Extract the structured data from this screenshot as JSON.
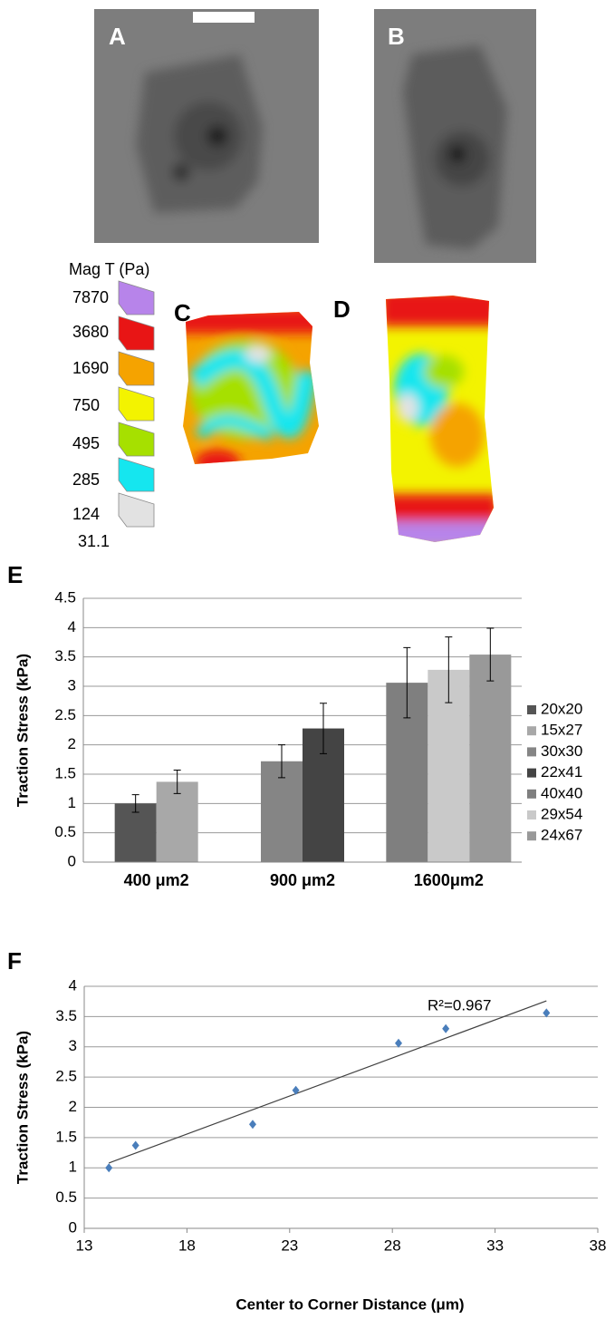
{
  "panels": {
    "a": "A",
    "b": "B",
    "c": "C",
    "d": "D"
  },
  "colorbar": {
    "title": "Mag T (Pa)",
    "labels": [
      "7870",
      "3680",
      "1690",
      "750",
      "495",
      "285",
      "124",
      "31.1"
    ],
    "colors": [
      "#b784ea",
      "#e81515",
      "#f5a300",
      "#f3f300",
      "#a6e000",
      "#15e6ef",
      "#e2e2e2"
    ]
  },
  "chart_data": [
    {
      "type": "bar",
      "label": "E",
      "ylabel": "Traction Stress (kPa)",
      "categories": [
        "400 μm2",
        "900 μm2",
        "1600μm2"
      ],
      "series": [
        {
          "name": "20x20",
          "color": "#555555",
          "values": [
            1.0,
            null,
            null
          ],
          "errors": [
            0.15,
            null,
            null
          ]
        },
        {
          "name": "15x27",
          "color": "#a8a8a8",
          "values": [
            1.37,
            null,
            null
          ],
          "errors": [
            0.2,
            null,
            null
          ]
        },
        {
          "name": "30x30",
          "color": "#858585",
          "values": [
            null,
            1.72,
            null
          ],
          "errors": [
            null,
            0.28,
            null
          ]
        },
        {
          "name": "22x41",
          "color": "#444444",
          "values": [
            null,
            2.28,
            null
          ],
          "errors": [
            null,
            0.43,
            null
          ]
        },
        {
          "name": "40x40",
          "color": "#7f7f7f",
          "values": [
            null,
            null,
            3.06
          ],
          "errors": [
            null,
            null,
            0.6
          ]
        },
        {
          "name": "29x54",
          "color": "#c9c9c9",
          "values": [
            null,
            null,
            3.28
          ],
          "errors": [
            null,
            null,
            0.56
          ]
        },
        {
          "name": "24x67",
          "color": "#999999",
          "values": [
            null,
            null,
            3.54
          ],
          "errors": [
            null,
            null,
            0.45
          ]
        }
      ],
      "ylim": [
        0,
        4.5
      ],
      "yticks": [
        0,
        0.5,
        1,
        1.5,
        2,
        2.5,
        3,
        3.5,
        4,
        4.5
      ],
      "grid": true,
      "legend": "right"
    },
    {
      "type": "scatter",
      "label": "F",
      "ylabel": "Traction Stress (kPa)",
      "xlabel": "Center to Corner Distance (μm)",
      "annotation": "R²=0.967",
      "color": "#4a7ebb",
      "x": [
        14.2,
        15.5,
        21.2,
        23.3,
        28.3,
        30.6,
        35.5
      ],
      "values": [
        1.0,
        1.37,
        1.72,
        2.28,
        3.06,
        3.3,
        3.56
      ],
      "trendline": {
        "x": [
          14.2,
          35.5
        ],
        "y": [
          1.08,
          3.76
        ],
        "color": "#404040"
      },
      "xlim": [
        13,
        38
      ],
      "xticks": [
        13,
        18,
        23,
        28,
        33,
        38
      ],
      "ylim": [
        0,
        4
      ],
      "yticks": [
        0,
        0.5,
        1,
        1.5,
        2,
        2.5,
        3,
        3.5,
        4
      ],
      "grid": true
    }
  ]
}
